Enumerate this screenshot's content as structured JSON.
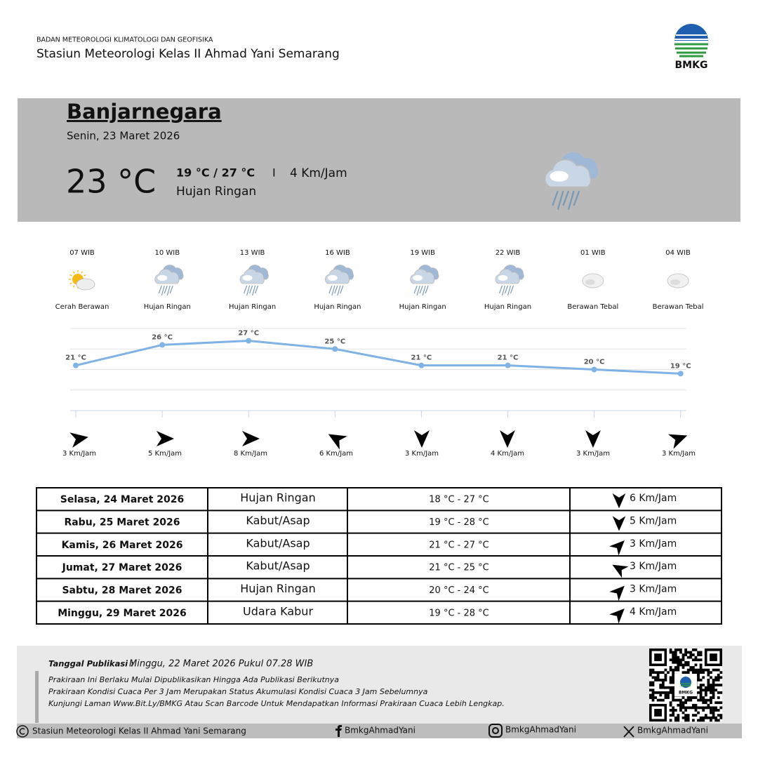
{
  "header": {
    "agency": "BADAN METEOROLOGI KLIMATOLOGI DAN GEOFISIKA",
    "station": "Stasiun Meteorologi Kelas II Ahmad Yani Semarang",
    "logo": "BMKG"
  },
  "current": {
    "city": "Banjarnegara",
    "date": "Senin, 23 Maret 2026",
    "temperature": "23 °C",
    "range": "19 °C / 27 °C",
    "separator": "I",
    "wind": "4 Km/Jam",
    "condition": "Hujan Ringan"
  },
  "chart_data": {
    "type": "line",
    "categories": [
      "07 WIB",
      "10 WIB",
      "13 WIB",
      "16 WIB",
      "19 WIB",
      "22 WIB",
      "01 WIB",
      "04 WIB"
    ],
    "values": [
      21,
      26,
      27,
      25,
      21,
      21,
      20,
      19
    ],
    "value_labels": [
      "21 °C",
      "26 °C",
      "27 °C",
      "25 °C",
      "21 °C",
      "21 °C",
      "20 °C",
      "19 °C"
    ],
    "color": "#7fb2e5",
    "ylim": [
      10,
      30
    ],
    "yticks": [
      10,
      15,
      20,
      25,
      30
    ],
    "grid": true
  },
  "hourly": [
    {
      "condition": "Cerah Berawan",
      "wind": "3 Km/Jam",
      "wind_direction": 80
    },
    {
      "condition": "Hujan Ringan",
      "wind": "5 Km/Jam",
      "wind_direction": 90
    },
    {
      "condition": "Hujan Ringan",
      "wind": "8 Km/Jam",
      "wind_direction": 90
    },
    {
      "condition": "Hujan Ringan",
      "wind": "6 Km/Jam",
      "wind_direction": 300
    },
    {
      "condition": "Hujan Ringan",
      "wind": "3 Km/Jam",
      "wind_direction": 180
    },
    {
      "condition": "Hujan Ringan",
      "wind": "4 Km/Jam",
      "wind_direction": 180
    },
    {
      "condition": "Berawan Tebal",
      "wind": "3 Km/Jam",
      "wind_direction": 180
    },
    {
      "condition": "Berawan Tebal",
      "wind": "3 Km/Jam",
      "wind_direction": 70
    }
  ],
  "daily": [
    {
      "date": "Selasa, 24 Maret 2026",
      "condition": "Hujan Ringan",
      "temperature": "18 °C - 27 °C",
      "wind": "6 Km/Jam",
      "wind_direction": 180
    },
    {
      "date": "Rabu, 25 Maret 2026",
      "condition": "Kabut/Asap",
      "temperature": "19 °C - 28 °C",
      "wind": "5 Km/Jam",
      "wind_direction": 180
    },
    {
      "date": "Kamis, 26 Maret 2026",
      "condition": "Kabut/Asap",
      "temperature": "21 °C - 27 °C",
      "wind": "3 Km/Jam",
      "wind_direction": 45
    },
    {
      "date": "Jumat, 27 Maret 2026",
      "condition": "Kabut/Asap",
      "temperature": "21 °C - 25 °C",
      "wind": "3 Km/Jam",
      "wind_direction": 300
    },
    {
      "date": "Sabtu, 28 Maret 2026",
      "condition": "Hujan Ringan",
      "temperature": "20 °C - 24 °C",
      "wind": "3 Km/Jam",
      "wind_direction": 45
    },
    {
      "date": "Minggu, 29 Maret 2026",
      "condition": "Udara Kabur",
      "temperature": "19 °C - 28 °C",
      "wind": "4 Km/Jam",
      "wind_direction": 45
    }
  ],
  "footer": {
    "published_label": "Tanggal Publikasi :",
    "published": "Minggu, 22 Maret 2026 Pukul 07.28 WIB",
    "notes": [
      "Prakiraan Ini Berlaku Mulai Dipublikasikan Hingga Ada Publikasi Berikutnya",
      "Prakiraan Kondisi Cuaca Per 3 Jam Merupakan Status Akumulasi Kondisi Cuaca 3 Jam Sebelumnya",
      "Kunjungi Laman Www.Bit.Ly/BMKG Atau Scan Barcode Untuk Mendapatkan Informasi Prakiraan Cuaca Lebih Lengkap."
    ],
    "qr_label": "BMKG",
    "copyright": "Stasiun Meteorologi Kelas II Ahmad Yani Semarang",
    "facebook": "BmkgAhmadYani",
    "instagram": "BmkgAhmadYani",
    "x": "BmkgAhmadYani"
  }
}
